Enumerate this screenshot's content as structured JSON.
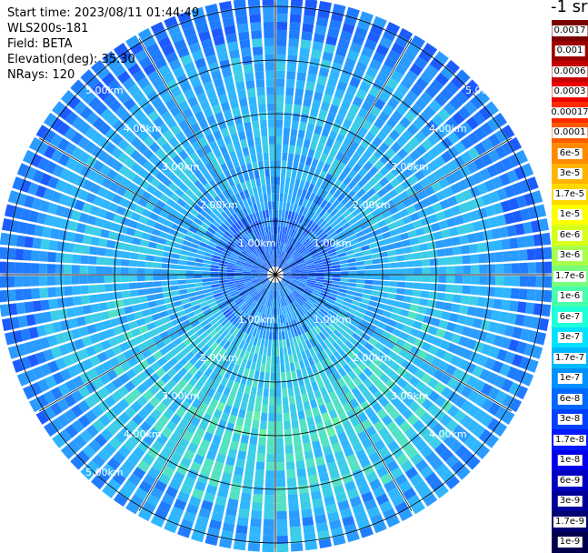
{
  "info": {
    "start_time": "Start time: 2023/08/11 01:44:49",
    "device": "WLS200s-181",
    "field": "Field: BETA",
    "elevation": "Elevation(deg): 35.30",
    "nrays": "NRays: 120"
  },
  "colorbar": {
    "unit": "-1 sr",
    "entries": [
      {
        "label": "0.0017",
        "color": "#7a0000"
      },
      {
        "label": "0.001",
        "color": "#9c0000"
      },
      {
        "label": "0.0006",
        "color": "#c40000"
      },
      {
        "label": "0.0003",
        "color": "#ea0000"
      },
      {
        "label": "0.00017",
        "color": "#ff2a00"
      },
      {
        "label": "0.0001",
        "color": "#ff5a00"
      },
      {
        "label": "6e-5",
        "color": "#ff8a00"
      },
      {
        "label": "3e-5",
        "color": "#ffb400"
      },
      {
        "label": "1.7e-5",
        "color": "#ffd800"
      },
      {
        "label": "1e-5",
        "color": "#ffff00"
      },
      {
        "label": "6e-6",
        "color": "#d8ff1c"
      },
      {
        "label": "3e-6",
        "color": "#a8ff4c"
      },
      {
        "label": "1.7e-6",
        "color": "#78ff7c"
      },
      {
        "label": "1e-6",
        "color": "#48ffac"
      },
      {
        "label": "6e-7",
        "color": "#1cffd8"
      },
      {
        "label": "3e-7",
        "color": "#00e0ff"
      },
      {
        "label": "1.7e-7",
        "color": "#00b8ff"
      },
      {
        "label": "1e-7",
        "color": "#0090ff"
      },
      {
        "label": "6e-8",
        "color": "#0068ff"
      },
      {
        "label": "3e-8",
        "color": "#0040ff"
      },
      {
        "label": "1.7e-8",
        "color": "#0018ff"
      },
      {
        "label": "1e-8",
        "color": "#0000e8"
      },
      {
        "label": "6e-9",
        "color": "#0000c0"
      },
      {
        "label": "3e-9",
        "color": "#000098"
      },
      {
        "label": "1.7e-9",
        "color": "#000070"
      },
      {
        "label": "1e-9",
        "color": "#00004c"
      }
    ]
  },
  "range_labels": {
    "r1": "1.00km",
    "r2": "2.00km",
    "r3": "3.00km",
    "r4": "4.00km",
    "r5": "5.00km"
  }
}
